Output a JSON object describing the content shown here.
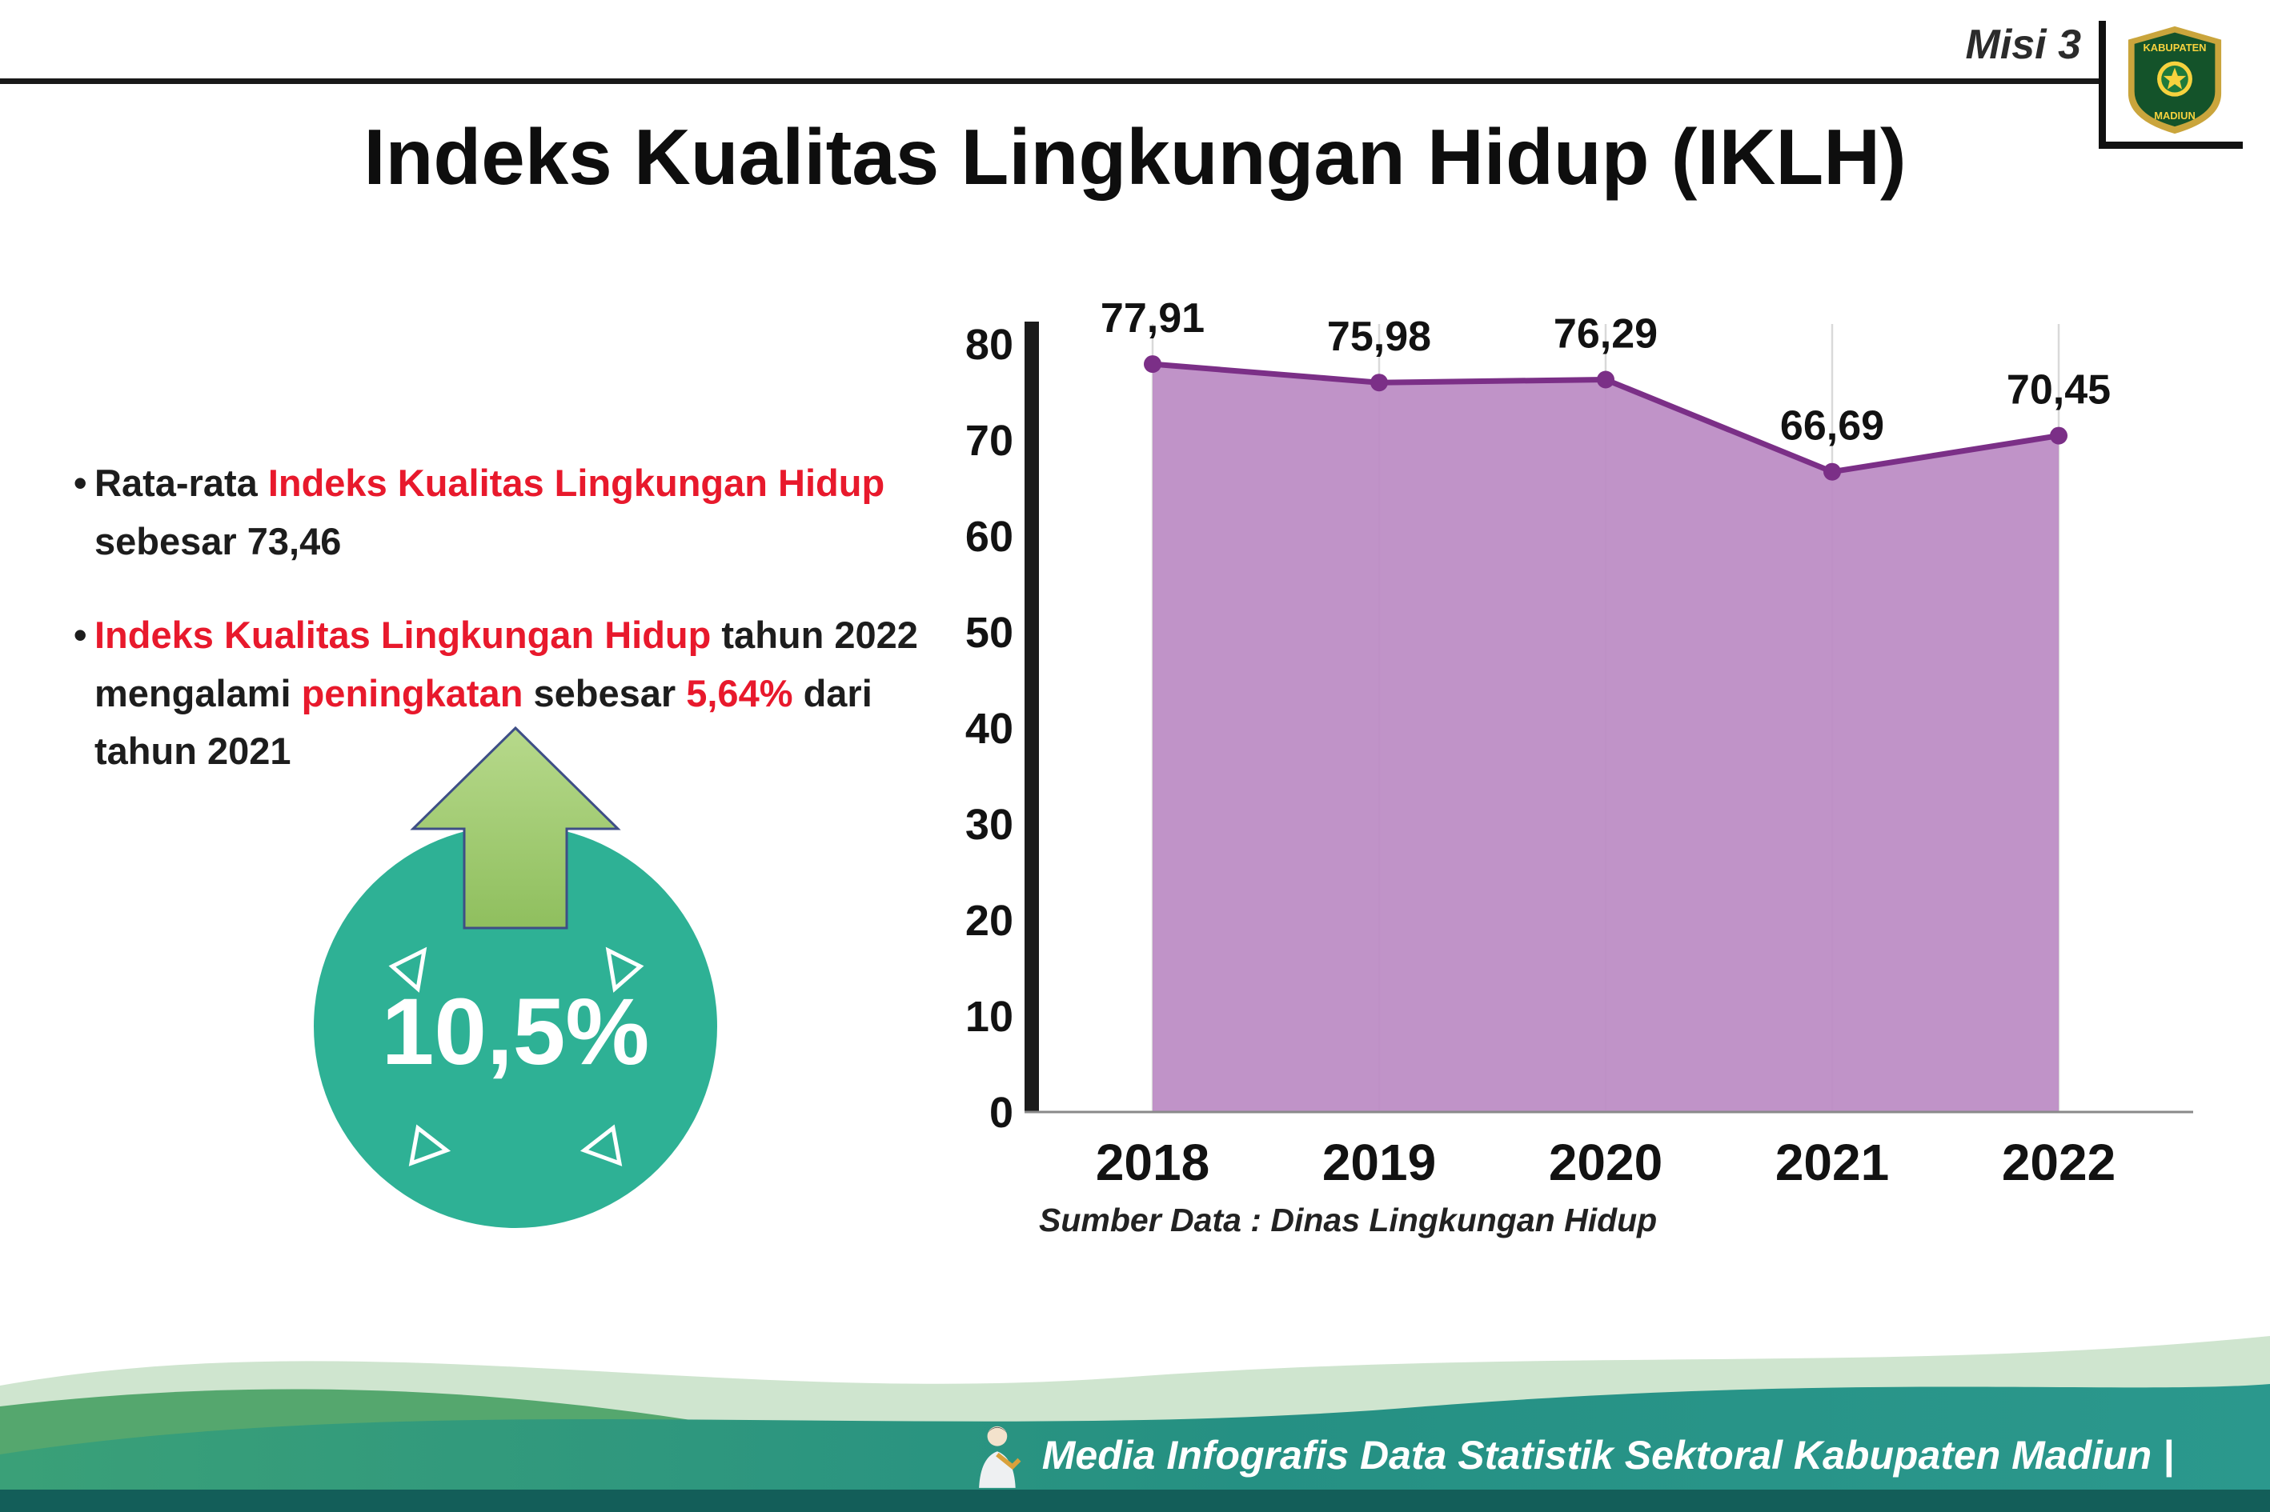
{
  "colors": {
    "accent_red": "#e8192c",
    "badge_teal": "#2eb195",
    "arrow_green": "#a6cd72"
  },
  "header": {
    "misi_label": "Misi 3",
    "title": "Indeks Kualitas Lingkungan Hidup (IKLH)",
    "logo_text_top": "KABUPATEN",
    "logo_text_bottom": "MADIUN"
  },
  "bullets": [
    {
      "marker": "•",
      "lines": [
        {
          "runs": [
            {
              "text": "Rata-rata ",
              "red": false
            },
            {
              "text": "Indeks Kualitas Lingkungan Hidup",
              "red": true
            }
          ]
        },
        {
          "runs": [
            {
              "text": "sebesar 73,46",
              "red": false
            }
          ]
        }
      ]
    },
    {
      "marker": "•",
      "lines": [
        {
          "runs": [
            {
              "text": "Indeks Kualitas Lingkungan Hidup",
              "red": true
            },
            {
              "text": " tahun 2022",
              "red": false
            }
          ]
        },
        {
          "runs": [
            {
              "text": "mengalami ",
              "red": false
            },
            {
              "text": "peningkatan",
              "red": true
            },
            {
              "text": " sebesar ",
              "red": false
            },
            {
              "text": "5,64%",
              "red": true
            },
            {
              "text": " dari",
              "red": false
            }
          ]
        },
        {
          "runs": [
            {
              "text": "tahun 2021",
              "red": false
            }
          ]
        }
      ]
    }
  ],
  "badge": {
    "value": "10,5%"
  },
  "chart_data": {
    "type": "area",
    "categories": [
      "2018",
      "2019",
      "2020",
      "2021",
      "2022"
    ],
    "values": [
      77.91,
      75.98,
      76.29,
      66.69,
      70.45
    ],
    "point_labels": [
      "77,91",
      "75,98",
      "76,29",
      "66,69",
      "70,45"
    ],
    "ylim": [
      0,
      80
    ],
    "yticks": [
      0,
      10,
      20,
      30,
      40,
      50,
      60,
      70,
      80
    ],
    "fill_color": "#bd8dc5",
    "line_color": "#7b2f87",
    "grid": "vertical",
    "legend": "none",
    "source": "Sumber Data : Dinas Lingkungan Hidup"
  },
  "footer": {
    "text": "Media Infografis Data Statistik Sektoral Kabupaten Madiun |"
  }
}
